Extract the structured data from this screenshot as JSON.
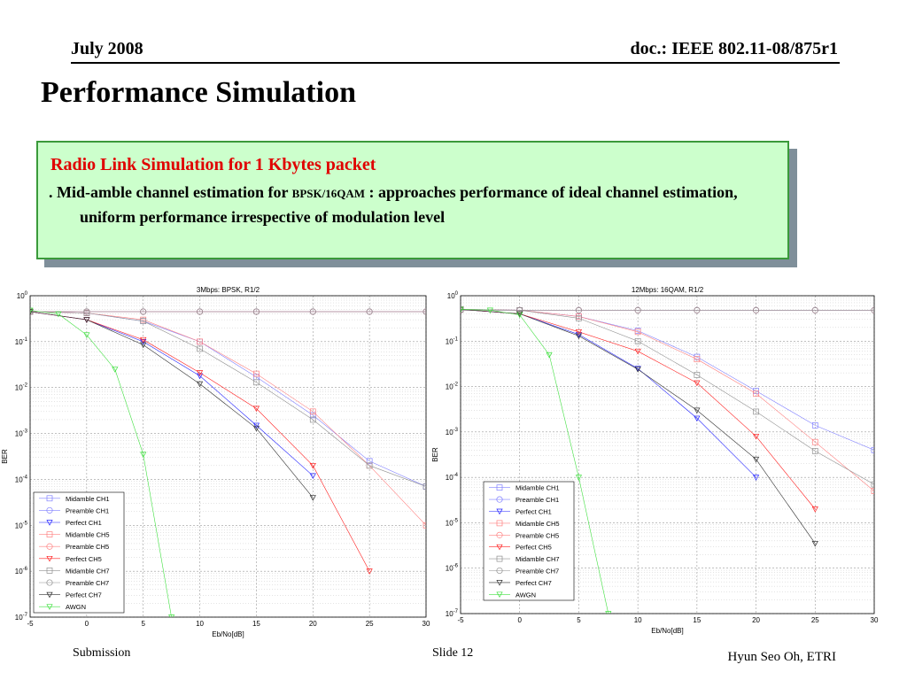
{
  "header": {
    "date": "July 2008",
    "doc": "doc.: IEEE 802.11-08/875r1"
  },
  "slide_title": "Performance Simulation",
  "box": {
    "heading": "Radio Link Simulation for 1 Kbytes packet",
    "body_prefix": ". Mid-amble channel estimation for ",
    "body_small": "BPSK/16QAM",
    "body_suffix": " : approaches performance of ideal channel estimation, uniform performance irrespective of modulation level"
  },
  "footer": {
    "left": "Submission",
    "center": "Slide 12",
    "right": "Hyun Seo Oh, ETRI"
  },
  "chart_data": [
    {
      "type": "line",
      "title": "3Mbps: BPSK, R1/2",
      "xlabel": "Eb/No[dB]",
      "ylabel": "BER",
      "xlim": [
        -5,
        30
      ],
      "ylim_exp": [
        -7,
        0
      ],
      "log_y": true,
      "grid": true,
      "legend_position": "bottom-left",
      "xticks": [
        "-5",
        "0",
        "5",
        "10",
        "15",
        "20",
        "25",
        "30"
      ],
      "yticks": [
        "10^0",
        "10^-1",
        "10^-2",
        "10^-3",
        "10^-4",
        "10^-5",
        "10^-6",
        "10^-7"
      ],
      "series": [
        {
          "name": "Midamble CH1",
          "color": "#8080ff",
          "marker": "square",
          "x": [
            -5,
            0,
            5,
            10,
            15,
            20,
            25,
            30
          ],
          "y": [
            0.45,
            0.42,
            0.28,
            0.1,
            0.017,
            0.0025,
            0.00025,
            7e-05
          ]
        },
        {
          "name": "Preamble CH1",
          "color": "#8080ff",
          "marker": "circle",
          "x": [
            -5,
            0,
            5,
            10,
            15,
            20,
            25,
            30
          ],
          "y": [
            0.45,
            0.45,
            0.45,
            0.45,
            0.45,
            0.45,
            0.45,
            0.45
          ]
        },
        {
          "name": "Perfect CH1",
          "color": "#2020ff",
          "marker": "tri",
          "x": [
            -5,
            0,
            5,
            10,
            15,
            20
          ],
          "y": [
            0.45,
            0.3,
            0.1,
            0.018,
            0.0015,
            0.00012
          ]
        },
        {
          "name": "Midamble CH5",
          "color": "#ff8080",
          "marker": "square",
          "x": [
            -5,
            0,
            5,
            10,
            15,
            20,
            25,
            30
          ],
          "y": [
            0.45,
            0.42,
            0.3,
            0.1,
            0.02,
            0.003,
            0.0002,
            1e-05
          ]
        },
        {
          "name": "Preamble CH5",
          "color": "#ff8080",
          "marker": "circle",
          "x": [
            -5,
            0,
            5,
            10,
            15,
            20,
            25,
            30
          ],
          "y": [
            0.45,
            0.45,
            0.45,
            0.45,
            0.45,
            0.45,
            0.45,
            0.45
          ]
        },
        {
          "name": "Perfect CH5",
          "color": "#ff2020",
          "marker": "tri",
          "x": [
            -5,
            0,
            5,
            10,
            15,
            20,
            25
          ],
          "y": [
            0.45,
            0.3,
            0.11,
            0.021,
            0.0035,
            0.0002,
            1e-06
          ]
        },
        {
          "name": "Midamble CH7",
          "color": "#909090",
          "marker": "square",
          "x": [
            -5,
            0,
            5,
            10,
            15,
            20,
            25,
            30
          ],
          "y": [
            0.45,
            0.42,
            0.28,
            0.07,
            0.013,
            0.002,
            0.0002,
            7e-05
          ]
        },
        {
          "name": "Preamble CH7",
          "color": "#909090",
          "marker": "circle",
          "x": [
            -5,
            0,
            5,
            10,
            15,
            20,
            25,
            30
          ],
          "y": [
            0.45,
            0.45,
            0.45,
            0.45,
            0.45,
            0.45,
            0.45,
            0.45
          ]
        },
        {
          "name": "Perfect CH7",
          "color": "#303030",
          "marker": "tri",
          "x": [
            -5,
            0,
            5,
            10,
            15,
            20
          ],
          "y": [
            0.45,
            0.3,
            0.085,
            0.012,
            0.0013,
            4e-05
          ]
        },
        {
          "name": "AWGN",
          "color": "#40e040",
          "marker": "tri",
          "x": [
            -5,
            -2.5,
            0,
            2.5,
            5,
            7.5
          ],
          "y": [
            0.48,
            0.4,
            0.14,
            0.025,
            0.00035,
            1e-07
          ]
        }
      ]
    },
    {
      "type": "line",
      "title": "12Mbps: 16QAM, R1/2",
      "xlabel": "Eb/No[dB]",
      "ylabel": "BER",
      "xlim": [
        -5,
        30
      ],
      "ylim_exp": [
        -7,
        0
      ],
      "log_y": true,
      "grid": true,
      "legend_position": "bottom-left",
      "xticks": [
        "-5",
        "0",
        "5",
        "10",
        "15",
        "20",
        "25",
        "30"
      ],
      "yticks": [
        "10^0",
        "10^-1",
        "10^-2",
        "10^-3",
        "10^-4",
        "10^-5",
        "10^-6",
        "10^-7"
      ],
      "series": [
        {
          "name": "Midamble CH1",
          "color": "#8080ff",
          "marker": "square",
          "x": [
            -5,
            0,
            5,
            10,
            15,
            20,
            25,
            30
          ],
          "y": [
            0.5,
            0.48,
            0.35,
            0.17,
            0.045,
            0.008,
            0.0014,
            0.0004
          ]
        },
        {
          "name": "Preamble CH1",
          "color": "#8080ff",
          "marker": "circle",
          "x": [
            -5,
            0,
            5,
            10,
            15,
            20,
            25,
            30
          ],
          "y": [
            0.48,
            0.48,
            0.48,
            0.48,
            0.48,
            0.48,
            0.48,
            0.48
          ]
        },
        {
          "name": "Perfect CH1",
          "color": "#2020ff",
          "marker": "tri",
          "x": [
            -5,
            0,
            5,
            10,
            15,
            20
          ],
          "y": [
            0.5,
            0.4,
            0.14,
            0.025,
            0.002,
            0.0001
          ]
        },
        {
          "name": "Midamble CH5",
          "color": "#ff8080",
          "marker": "square",
          "x": [
            -5,
            0,
            5,
            10,
            15,
            20,
            25,
            30
          ],
          "y": [
            0.5,
            0.48,
            0.35,
            0.16,
            0.04,
            0.007,
            0.0006,
            5e-05
          ]
        },
        {
          "name": "Preamble CH5",
          "color": "#ff8080",
          "marker": "circle",
          "x": [
            -5,
            0,
            5,
            10,
            15,
            20,
            25,
            30
          ],
          "y": [
            0.48,
            0.48,
            0.48,
            0.48,
            0.48,
            0.48,
            0.48,
            0.48
          ]
        },
        {
          "name": "Perfect CH5",
          "color": "#ff2020",
          "marker": "tri",
          "x": [
            -5,
            0,
            5,
            10,
            15,
            20,
            25
          ],
          "y": [
            0.5,
            0.4,
            0.16,
            0.06,
            0.012,
            0.0008,
            2e-05
          ]
        },
        {
          "name": "Midamble CH7",
          "color": "#909090",
          "marker": "square",
          "x": [
            -5,
            0,
            5,
            10,
            15,
            20,
            25,
            30
          ],
          "y": [
            0.5,
            0.48,
            0.32,
            0.1,
            0.018,
            0.0028,
            0.00038,
            7e-05
          ]
        },
        {
          "name": "Preamble CH7",
          "color": "#909090",
          "marker": "circle",
          "x": [
            -5,
            0,
            5,
            10,
            15,
            20,
            25,
            30
          ],
          "y": [
            0.48,
            0.48,
            0.48,
            0.48,
            0.48,
            0.48,
            0.48,
            0.48
          ]
        },
        {
          "name": "Perfect CH7",
          "color": "#303030",
          "marker": "tri",
          "x": [
            -5,
            0,
            5,
            10,
            15,
            20,
            25
          ],
          "y": [
            0.5,
            0.4,
            0.13,
            0.024,
            0.003,
            0.00025,
            3.5e-06
          ]
        },
        {
          "name": "AWGN",
          "color": "#40e040",
          "marker": "tri",
          "x": [
            -5,
            -2.5,
            0,
            2.5,
            5,
            7.5
          ],
          "y": [
            0.5,
            0.48,
            0.38,
            0.05,
            0.0001,
            1e-07
          ]
        }
      ]
    }
  ]
}
